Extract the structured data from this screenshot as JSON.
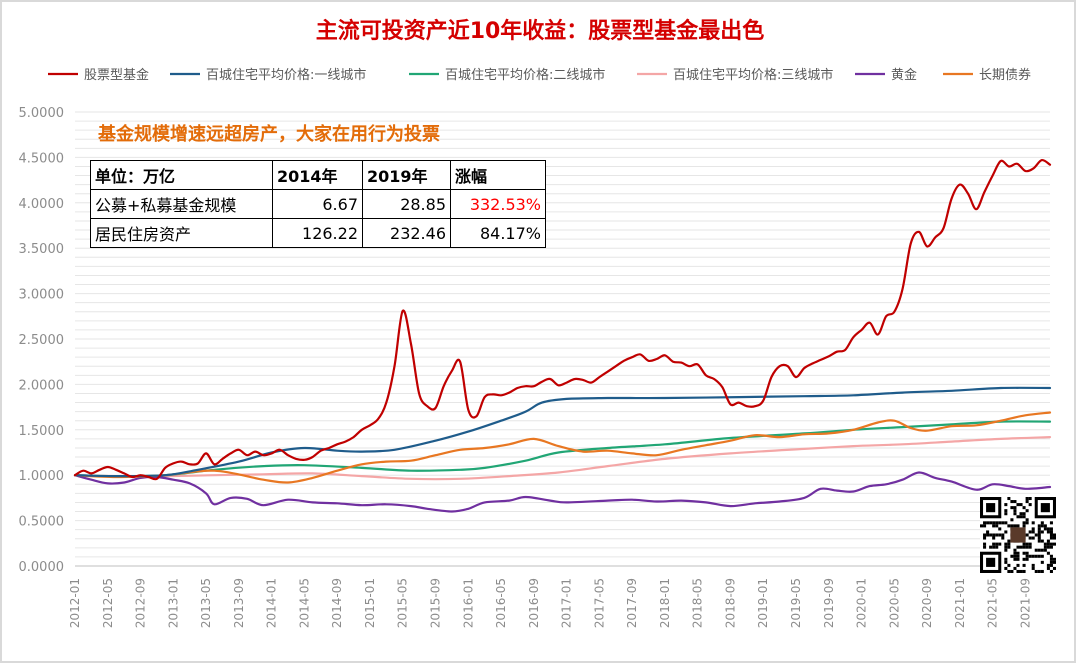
{
  "title": "主流可投资产近10年收益：股票型基金最出色",
  "subtitle": "基金规模增速远超房产，大家在用行为投票",
  "table": {
    "header": [
      "单位：万亿",
      "2014年",
      "2019年",
      "涨幅"
    ],
    "rows": [
      [
        "公募+私募基金规模",
        "6.67",
        "28.85",
        "332.53%"
      ],
      [
        "居民住房资产",
        "126.22",
        "232.46",
        "84.17%"
      ]
    ]
  },
  "colors": {
    "股票型基金": "#c00000",
    "百城住宅平均价格:一线城市": "#1f5c8b",
    "百城住宅平均价格:二线城市": "#21a675",
    "百城住宅平均价格:三线城市": "#f4a6a6",
    "黄金": "#7030a0",
    "长期债券": "#e87722",
    "highlight": "#ff0000"
  },
  "chart_data": {
    "type": "line",
    "title": "主流可投资产近10年收益：股票型基金最出色",
    "xlabel": "",
    "ylabel": "",
    "ylim": [
      0,
      5
    ],
    "y_ticks": [
      "0.0000",
      "0.5000",
      "1.0000",
      "1.5000",
      "2.0000",
      "2.5000",
      "3.0000",
      "3.5000",
      "4.0000",
      "4.5000",
      "5.0000"
    ],
    "x_range": [
      "2012-01",
      "2021-12"
    ],
    "x_ticks": [
      "2012-01",
      "2012-05",
      "2012-09",
      "2013-01",
      "2013-05",
      "2013-09",
      "2014-01",
      "2014-05",
      "2014-09",
      "2015-01",
      "2015-05",
      "2015-09",
      "2016-01",
      "2016-05",
      "2016-09",
      "2017-01",
      "2017-05",
      "2017-09",
      "2018-01",
      "2018-05",
      "2018-09",
      "2019-01",
      "2019-05",
      "2019-09",
      "2020-01",
      "2020-05",
      "2020-09",
      "2021-01",
      "2021-05",
      "2021-09"
    ],
    "legend_position": "top",
    "grid": true,
    "series": [
      {
        "name": "股票型基金",
        "points": [
          [
            "2012-01",
            1.0
          ],
          [
            "2012-02",
            1.05
          ],
          [
            "2012-03",
            1.02
          ],
          [
            "2012-04",
            1.06
          ],
          [
            "2012-05",
            1.09
          ],
          [
            "2012-06",
            1.06
          ],
          [
            "2012-07",
            1.02
          ],
          [
            "2012-08",
            0.98
          ],
          [
            "2012-09",
            1.0
          ],
          [
            "2012-10",
            0.98
          ],
          [
            "2012-11",
            0.96
          ],
          [
            "2012-12",
            1.08
          ],
          [
            "2013-01",
            1.13
          ],
          [
            "2013-02",
            1.15
          ],
          [
            "2013-03",
            1.12
          ],
          [
            "2013-04",
            1.13
          ],
          [
            "2013-05",
            1.24
          ],
          [
            "2013-06",
            1.12
          ],
          [
            "2013-07",
            1.18
          ],
          [
            "2013-08",
            1.24
          ],
          [
            "2013-09",
            1.28
          ],
          [
            "2013-10",
            1.22
          ],
          [
            "2013-11",
            1.26
          ],
          [
            "2013-12",
            1.22
          ],
          [
            "2014-01",
            1.24
          ],
          [
            "2014-02",
            1.28
          ],
          [
            "2014-03",
            1.22
          ],
          [
            "2014-04",
            1.18
          ],
          [
            "2014-05",
            1.17
          ],
          [
            "2014-06",
            1.2
          ],
          [
            "2014-07",
            1.27
          ],
          [
            "2014-08",
            1.3
          ],
          [
            "2014-09",
            1.34
          ],
          [
            "2014-10",
            1.37
          ],
          [
            "2014-11",
            1.42
          ],
          [
            "2014-12",
            1.5
          ],
          [
            "2015-01",
            1.55
          ],
          [
            "2015-02",
            1.62
          ],
          [
            "2015-03",
            1.8
          ],
          [
            "2015-04",
            2.2
          ],
          [
            "2015-05",
            2.81
          ],
          [
            "2015-06",
            2.45
          ],
          [
            "2015-07",
            1.9
          ],
          [
            "2015-08",
            1.76
          ],
          [
            "2015-09",
            1.74
          ],
          [
            "2015-10",
            1.98
          ],
          [
            "2015-11",
            2.15
          ],
          [
            "2015-12",
            2.25
          ],
          [
            "2016-01",
            1.72
          ],
          [
            "2016-02",
            1.65
          ],
          [
            "2016-03",
            1.86
          ],
          [
            "2016-04",
            1.89
          ],
          [
            "2016-05",
            1.88
          ],
          [
            "2016-06",
            1.91
          ],
          [
            "2016-07",
            1.96
          ],
          [
            "2016-08",
            1.98
          ],
          [
            "2016-09",
            1.98
          ],
          [
            "2016-10",
            2.03
          ],
          [
            "2016-11",
            2.06
          ],
          [
            "2016-12",
            1.99
          ],
          [
            "2017-01",
            2.02
          ],
          [
            "2017-02",
            2.06
          ],
          [
            "2017-03",
            2.05
          ],
          [
            "2017-04",
            2.02
          ],
          [
            "2017-05",
            2.08
          ],
          [
            "2017-06",
            2.14
          ],
          [
            "2017-07",
            2.2
          ],
          [
            "2017-08",
            2.26
          ],
          [
            "2017-09",
            2.3
          ],
          [
            "2017-10",
            2.33
          ],
          [
            "2017-11",
            2.26
          ],
          [
            "2017-12",
            2.28
          ],
          [
            "2018-01",
            2.32
          ],
          [
            "2018-02",
            2.25
          ],
          [
            "2018-03",
            2.24
          ],
          [
            "2018-04",
            2.2
          ],
          [
            "2018-05",
            2.22
          ],
          [
            "2018-06",
            2.1
          ],
          [
            "2018-07",
            2.06
          ],
          [
            "2018-08",
            1.97
          ],
          [
            "2018-09",
            1.78
          ],
          [
            "2018-10",
            1.8
          ],
          [
            "2018-11",
            1.76
          ],
          [
            "2018-12",
            1.76
          ],
          [
            "2019-01",
            1.82
          ],
          [
            "2019-02",
            2.08
          ],
          [
            "2019-03",
            2.2
          ],
          [
            "2019-04",
            2.2
          ],
          [
            "2019-05",
            2.08
          ],
          [
            "2019-06",
            2.18
          ],
          [
            "2019-07",
            2.23
          ],
          [
            "2019-08",
            2.27
          ],
          [
            "2019-09",
            2.31
          ],
          [
            "2019-10",
            2.36
          ],
          [
            "2019-11",
            2.38
          ],
          [
            "2019-12",
            2.52
          ],
          [
            "2020-01",
            2.6
          ],
          [
            "2020-02",
            2.68
          ],
          [
            "2020-03",
            2.55
          ],
          [
            "2020-04",
            2.75
          ],
          [
            "2020-05",
            2.8
          ],
          [
            "2020-06",
            3.05
          ],
          [
            "2020-07",
            3.55
          ],
          [
            "2020-08",
            3.68
          ],
          [
            "2020-09",
            3.52
          ],
          [
            "2020-10",
            3.62
          ],
          [
            "2020-11",
            3.72
          ],
          [
            "2020-12",
            4.05
          ],
          [
            "2021-01",
            4.2
          ],
          [
            "2021-02",
            4.1
          ],
          [
            "2021-03",
            3.93
          ],
          [
            "2021-04",
            4.12
          ],
          [
            "2021-05",
            4.3
          ],
          [
            "2021-06",
            4.46
          ],
          [
            "2021-07",
            4.4
          ],
          [
            "2021-08",
            4.43
          ],
          [
            "2021-09",
            4.35
          ],
          [
            "2021-10",
            4.38
          ],
          [
            "2021-11",
            4.47
          ],
          [
            "2021-12",
            4.42
          ]
        ]
      },
      {
        "name": "百城住宅平均价格:一线城市",
        "points": [
          [
            "2012-01",
            1.0
          ],
          [
            "2012-06",
            0.99
          ],
          [
            "2012-12",
            1.0
          ],
          [
            "2013-04",
            1.06
          ],
          [
            "2013-09",
            1.15
          ],
          [
            "2014-01",
            1.25
          ],
          [
            "2014-05",
            1.3
          ],
          [
            "2014-09",
            1.27
          ],
          [
            "2014-12",
            1.26
          ],
          [
            "2015-04",
            1.28
          ],
          [
            "2015-09",
            1.38
          ],
          [
            "2016-01",
            1.48
          ],
          [
            "2016-05",
            1.6
          ],
          [
            "2016-08",
            1.7
          ],
          [
            "2016-10",
            1.8
          ],
          [
            "2017-01",
            1.84
          ],
          [
            "2017-06",
            1.85
          ],
          [
            "2018-01",
            1.85
          ],
          [
            "2018-10",
            1.86
          ],
          [
            "2019-06",
            1.87
          ],
          [
            "2019-12",
            1.88
          ],
          [
            "2020-06",
            1.91
          ],
          [
            "2020-12",
            1.93
          ],
          [
            "2021-06",
            1.96
          ],
          [
            "2021-12",
            1.96
          ]
        ]
      },
      {
        "name": "百城住宅平均价格:二线城市",
        "points": [
          [
            "2012-01",
            1.0
          ],
          [
            "2012-06",
            0.99
          ],
          [
            "2012-12",
            1.0
          ],
          [
            "2013-06",
            1.06
          ],
          [
            "2013-12",
            1.1
          ],
          [
            "2014-05",
            1.11
          ],
          [
            "2014-12",
            1.08
          ],
          [
            "2015-06",
            1.05
          ],
          [
            "2015-12",
            1.06
          ],
          [
            "2016-03",
            1.08
          ],
          [
            "2016-08",
            1.16
          ],
          [
            "2016-12",
            1.25
          ],
          [
            "2017-06",
            1.3
          ],
          [
            "2018-01",
            1.34
          ],
          [
            "2018-09",
            1.41
          ],
          [
            "2019-06",
            1.46
          ],
          [
            "2019-12",
            1.5
          ],
          [
            "2020-06",
            1.53
          ],
          [
            "2020-12",
            1.56
          ],
          [
            "2021-06",
            1.59
          ],
          [
            "2021-12",
            1.59
          ]
        ]
      },
      {
        "name": "百城住宅平均价格:三线城市",
        "points": [
          [
            "2012-01",
            1.0
          ],
          [
            "2012-06",
            0.99
          ],
          [
            "2012-12",
            0.99
          ],
          [
            "2013-06",
            1.0
          ],
          [
            "2013-12",
            1.01
          ],
          [
            "2014-06",
            1.02
          ],
          [
            "2014-12",
            0.99
          ],
          [
            "2015-06",
            0.96
          ],
          [
            "2015-12",
            0.96
          ],
          [
            "2016-06",
            0.99
          ],
          [
            "2016-12",
            1.03
          ],
          [
            "2017-06",
            1.1
          ],
          [
            "2018-01",
            1.18
          ],
          [
            "2018-09",
            1.24
          ],
          [
            "2019-06",
            1.29
          ],
          [
            "2019-12",
            1.32
          ],
          [
            "2020-06",
            1.34
          ],
          [
            "2020-12",
            1.37
          ],
          [
            "2021-06",
            1.4
          ],
          [
            "2021-12",
            1.42
          ]
        ]
      },
      {
        "name": "黄金",
        "points": [
          [
            "2012-01",
            1.0
          ],
          [
            "2012-03",
            0.95
          ],
          [
            "2012-05",
            0.91
          ],
          [
            "2012-07",
            0.92
          ],
          [
            "2012-09",
            0.97
          ],
          [
            "2012-11",
            0.98
          ],
          [
            "2013-01",
            0.95
          ],
          [
            "2013-03",
            0.91
          ],
          [
            "2013-05",
            0.8
          ],
          [
            "2013-06",
            0.68
          ],
          [
            "2013-08",
            0.75
          ],
          [
            "2013-10",
            0.74
          ],
          [
            "2013-12",
            0.67
          ],
          [
            "2014-03",
            0.73
          ],
          [
            "2014-06",
            0.7
          ],
          [
            "2014-09",
            0.69
          ],
          [
            "2014-12",
            0.67
          ],
          [
            "2015-03",
            0.68
          ],
          [
            "2015-06",
            0.66
          ],
          [
            "2015-08",
            0.63
          ],
          [
            "2015-11",
            0.6
          ],
          [
            "2016-01",
            0.63
          ],
          [
            "2016-03",
            0.7
          ],
          [
            "2016-06",
            0.72
          ],
          [
            "2016-08",
            0.76
          ],
          [
            "2016-11",
            0.72
          ],
          [
            "2017-01",
            0.7
          ],
          [
            "2017-06",
            0.72
          ],
          [
            "2017-09",
            0.73
          ],
          [
            "2017-12",
            0.71
          ],
          [
            "2018-03",
            0.72
          ],
          [
            "2018-06",
            0.7
          ],
          [
            "2018-09",
            0.66
          ],
          [
            "2018-12",
            0.69
          ],
          [
            "2019-03",
            0.71
          ],
          [
            "2019-06",
            0.75
          ],
          [
            "2019-08",
            0.85
          ],
          [
            "2019-10",
            0.83
          ],
          [
            "2019-12",
            0.82
          ],
          [
            "2020-02",
            0.88
          ],
          [
            "2020-04",
            0.9
          ],
          [
            "2020-06",
            0.95
          ],
          [
            "2020-08",
            1.03
          ],
          [
            "2020-10",
            0.97
          ],
          [
            "2020-12",
            0.93
          ],
          [
            "2021-03",
            0.84
          ],
          [
            "2021-05",
            0.9
          ],
          [
            "2021-07",
            0.88
          ],
          [
            "2021-09",
            0.85
          ],
          [
            "2021-12",
            0.87
          ]
        ]
      },
      {
        "name": "长期债券",
        "points": [
          [
            "2012-01",
            1.0
          ],
          [
            "2012-06",
            0.98
          ],
          [
            "2012-12",
            1.0
          ],
          [
            "2013-06",
            1.05
          ],
          [
            "2013-12",
            0.95
          ],
          [
            "2014-03",
            0.92
          ],
          [
            "2014-06",
            0.97
          ],
          [
            "2014-09",
            1.05
          ],
          [
            "2014-12",
            1.12
          ],
          [
            "2015-03",
            1.15
          ],
          [
            "2015-06",
            1.16
          ],
          [
            "2015-09",
            1.22
          ],
          [
            "2015-12",
            1.28
          ],
          [
            "2016-03",
            1.3
          ],
          [
            "2016-06",
            1.34
          ],
          [
            "2016-09",
            1.4
          ],
          [
            "2016-12",
            1.32
          ],
          [
            "2017-03",
            1.26
          ],
          [
            "2017-06",
            1.27
          ],
          [
            "2017-09",
            1.24
          ],
          [
            "2017-12",
            1.22
          ],
          [
            "2018-03",
            1.28
          ],
          [
            "2018-06",
            1.33
          ],
          [
            "2018-09",
            1.38
          ],
          [
            "2018-12",
            1.44
          ],
          [
            "2019-03",
            1.42
          ],
          [
            "2019-06",
            1.45
          ],
          [
            "2019-09",
            1.46
          ],
          [
            "2019-12",
            1.5
          ],
          [
            "2020-03",
            1.58
          ],
          [
            "2020-05",
            1.6
          ],
          [
            "2020-07",
            1.52
          ],
          [
            "2020-09",
            1.49
          ],
          [
            "2020-12",
            1.54
          ],
          [
            "2021-03",
            1.55
          ],
          [
            "2021-06",
            1.6
          ],
          [
            "2021-09",
            1.66
          ],
          [
            "2021-12",
            1.69
          ]
        ]
      }
    ]
  }
}
